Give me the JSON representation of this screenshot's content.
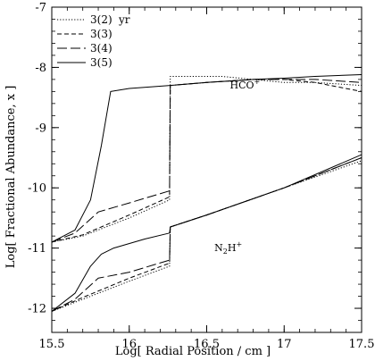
{
  "chart_data": {
    "type": "line",
    "xlabel": "Log[ Radial Position / cm ]",
    "ylabel": "Log[ Fractional Abundance, x ]",
    "xlim": [
      15.5,
      17.5
    ],
    "ylim": [
      -12.4,
      -7.0
    ],
    "x_ticks": [
      "15.5",
      "16",
      "16.5",
      "17",
      "17.5"
    ],
    "y_ticks": [
      "-12",
      "-11",
      "-10",
      "-9",
      "-8",
      "-7"
    ],
    "x_tick_values": [
      15.5,
      16,
      16.5,
      17,
      17.5
    ],
    "y_tick_values": [
      -12,
      -11,
      -10,
      -9,
      -8,
      -7
    ],
    "grid": false,
    "legend_position": "top-left",
    "legend_suffix": "yr",
    "annotations": [
      {
        "label": "HCO",
        "sup": "+",
        "x": 16.65,
        "y": -8.35
      },
      {
        "label": "N",
        "sub": "2",
        "after": "H",
        "sup": "+",
        "x": 16.55,
        "y": -11.05
      }
    ],
    "series": [
      {
        "name": "3(2)",
        "style": "dotted",
        "curves": [
          {
            "x": [
              15.5,
              15.7,
              16.0,
              16.26,
              16.265,
              16.4,
              16.6,
              16.8,
              17.0,
              17.2,
              17.5
            ],
            "y": [
              -10.9,
              -10.8,
              -10.5,
              -10.2,
              -8.15,
              -8.15,
              -8.15,
              -8.2,
              -8.25,
              -8.25,
              -8.3
            ]
          },
          {
            "x": [
              15.5,
              15.7,
              16.0,
              16.26,
              16.265,
              16.5,
              17.0,
              17.5
            ],
            "y": [
              -12.05,
              -11.85,
              -11.55,
              -11.3,
              -10.65,
              -10.45,
              -10.0,
              -9.55
            ]
          }
        ]
      },
      {
        "name": "3(3)",
        "style": "short-dash",
        "curves": [
          {
            "x": [
              15.5,
              15.7,
              16.0,
              16.26,
              16.265,
              16.5,
              16.8,
              17.0,
              17.2,
              17.5
            ],
            "y": [
              -10.9,
              -10.78,
              -10.45,
              -10.15,
              -8.3,
              -8.25,
              -8.2,
              -8.2,
              -8.25,
              -8.4
            ]
          },
          {
            "x": [
              15.5,
              15.7,
              16.0,
              16.26,
              16.265,
              16.5,
              17.0,
              17.5
            ],
            "y": [
              -12.05,
              -11.82,
              -11.5,
              -11.25,
              -10.65,
              -10.45,
              -10.0,
              -9.5
            ]
          }
        ]
      },
      {
        "name": "3(4)",
        "style": "long-dash",
        "curves": [
          {
            "x": [
              15.5,
              15.65,
              15.8,
              16.0,
              16.26,
              16.265,
              16.5,
              16.8,
              17.0,
              17.2,
              17.5
            ],
            "y": [
              -10.9,
              -10.75,
              -10.4,
              -10.25,
              -10.05,
              -8.3,
              -8.25,
              -8.2,
              -8.2,
              -8.2,
              -8.25
            ]
          },
          {
            "x": [
              15.5,
              15.65,
              15.8,
              16.0,
              16.26,
              16.265,
              16.5,
              17.0,
              17.5
            ],
            "y": [
              -12.05,
              -11.85,
              -11.5,
              -11.4,
              -11.2,
              -10.65,
              -10.45,
              -10.0,
              -9.5
            ]
          }
        ]
      },
      {
        "name": "3(5)",
        "style": "solid",
        "curves": [
          {
            "x": [
              15.5,
              15.65,
              15.75,
              15.82,
              15.88,
              16.0,
              16.265,
              16.5,
              16.8,
              17.0,
              17.2,
              17.5
            ],
            "y": [
              -10.9,
              -10.7,
              -10.2,
              -9.3,
              -8.4,
              -8.35,
              -8.3,
              -8.25,
              -8.2,
              -8.18,
              -8.15,
              -8.12
            ]
          },
          {
            "x": [
              15.5,
              15.65,
              15.75,
              15.82,
              15.9,
              16.1,
              16.26,
              16.265,
              16.5,
              17.0,
              17.5
            ],
            "y": [
              -12.05,
              -11.75,
              -11.3,
              -11.1,
              -11.0,
              -10.85,
              -10.75,
              -10.65,
              -10.45,
              -10.0,
              -9.45
            ]
          }
        ]
      }
    ]
  }
}
